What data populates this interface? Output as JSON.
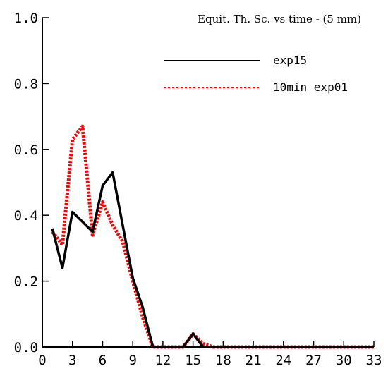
{
  "chart_data": {
    "type": "line",
    "title": "Equit. Th. Sc. vs time - (5 mm)",
    "xlabel": "",
    "ylabel": "",
    "xlim": [
      0,
      33
    ],
    "ylim": [
      0,
      1.0
    ],
    "x_ticks": [
      0,
      3,
      6,
      9,
      12,
      15,
      18,
      21,
      24,
      27,
      30,
      33
    ],
    "y_ticks": [
      0.0,
      0.2,
      0.4,
      0.6,
      0.8,
      1.0
    ],
    "y_tick_labels": [
      "0.0",
      "0.2",
      "0.4",
      "0.6",
      "0.8",
      "1.0"
    ],
    "grid": false,
    "legend_position": "top-right",
    "series": [
      {
        "name": "exp15",
        "color": "#000000",
        "style": "solid",
        "x": [
          1,
          2,
          3,
          4,
          5,
          6,
          7,
          8,
          9,
          10,
          11,
          12,
          13,
          14,
          15,
          16,
          17,
          18,
          19,
          20,
          21,
          22,
          23,
          24,
          25,
          26,
          27,
          28,
          29,
          30,
          31,
          32,
          33
        ],
        "y": [
          0.36,
          0.24,
          0.41,
          0.38,
          0.35,
          0.49,
          0.53,
          0.37,
          0.21,
          0.12,
          0.0,
          0.0,
          0.0,
          0.0,
          0.04,
          0.0,
          0.0,
          0.0,
          0.0,
          0.0,
          0.0,
          0.0,
          0.0,
          0.0,
          0.0,
          0.0,
          0.0,
          0.0,
          0.0,
          0.0,
          0.0,
          0.0,
          0.0
        ]
      },
      {
        "name": "10min exp01",
        "color": "#ff0000",
        "style": "dotted",
        "x": [
          1,
          2,
          3,
          4,
          5,
          6,
          7,
          8,
          9,
          10,
          11,
          12,
          13,
          14,
          15,
          16,
          17,
          18,
          19,
          20,
          21,
          22,
          23,
          24,
          25,
          26,
          27,
          28,
          29,
          30,
          31,
          32,
          33
        ],
        "y": [
          0.35,
          0.31,
          0.63,
          0.67,
          0.34,
          0.44,
          0.37,
          0.32,
          0.2,
          0.09,
          0.0,
          0.0,
          0.0,
          0.0,
          0.04,
          0.01,
          0.0,
          0.0,
          0.0,
          0.0,
          0.0,
          0.0,
          0.0,
          0.0,
          0.0,
          0.0,
          0.0,
          0.0,
          0.0,
          0.0,
          0.0,
          0.0,
          0.0
        ]
      }
    ]
  }
}
